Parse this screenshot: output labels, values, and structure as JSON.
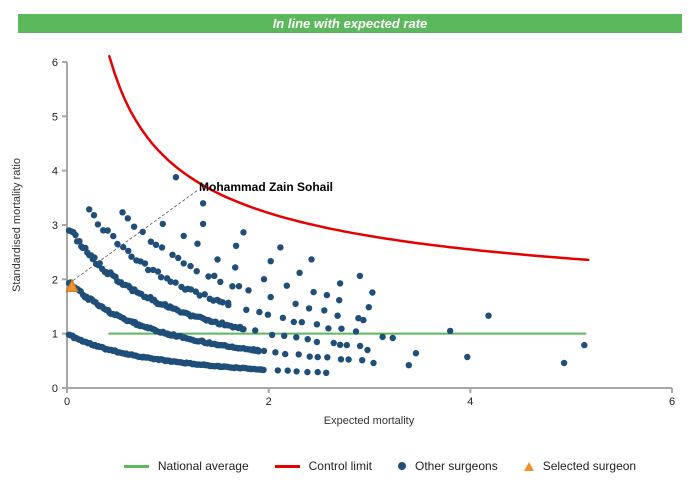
{
  "banner": {
    "text": "In line with expected rate",
    "background": "#5cb85c",
    "text_color": "#ffffff"
  },
  "chart_data": {
    "type": "scatter",
    "title": "In line with expected rate",
    "xlabel": "Expected mortality",
    "ylabel": "Standardised mortality ratio",
    "xlim": [
      0,
      6
    ],
    "ylim": [
      0,
      6
    ],
    "x_ticks": [
      0,
      2,
      4,
      6
    ],
    "y_ticks": [
      0,
      1,
      2,
      3,
      4,
      5,
      6
    ],
    "grid": false,
    "legend_position": "bottom",
    "colors": {
      "other_surgeons": "#1f4e79",
      "selected_surgeon": "#f0912d",
      "selected_surgeon_edge": "#c8761c",
      "national_average": "#5cb85c",
      "control_limit": "#e60000",
      "axis": "#a6a6a6",
      "leader_line": "#555555"
    },
    "national_average": {
      "value": 1,
      "x_start": 0.41,
      "x_end": 5.15
    },
    "control_limit": {
      "description": "y = 1 + 3/sqrt(x) + 0.2/x",
      "coef_sqrt": 3.0,
      "coef_inv": 0.2,
      "x_start": 0.42,
      "x_end": 5.17
    },
    "selected_surgeon": {
      "name": "Mohammad Zain Sohail",
      "x": 0.05,
      "y": 1.87
    },
    "band_formula": "y = observed_deaths / (1 + x)",
    "dot_radius": 3.2,
    "jitter": 0.02,
    "seed": 11,
    "bands": [
      {
        "observed_deaths": 1,
        "segments": [
          [
            0.02,
            1.95,
            0.01,
            0.022
          ],
          [
            1.95,
            2.65,
            0.055,
            0.15
          ]
        ]
      },
      {
        "observed_deaths": 2,
        "segments": [
          [
            0.02,
            1.9,
            0.011,
            0.024
          ],
          [
            1.9,
            2.95,
            0.05,
            0.14
          ]
        ]
      },
      {
        "observed_deaths": 3,
        "segments": [
          [
            0.02,
            1.75,
            0.013,
            0.03
          ],
          [
            1.75,
            2.95,
            0.05,
            0.17
          ]
        ]
      },
      {
        "observed_deaths": 4,
        "segments": [
          [
            0.22,
            1.6,
            0.025,
            0.06
          ],
          [
            1.6,
            2.92,
            0.07,
            0.2
          ]
        ]
      },
      {
        "observed_deaths": 5,
        "segments": [
          [
            0.55,
            1.8,
            0.05,
            0.12
          ],
          [
            1.8,
            2.95,
            0.1,
            0.25
          ]
        ]
      },
      {
        "observed_deaths": 6,
        "segments": [
          [
            0.95,
            3.05,
            0.12,
            0.3
          ]
        ]
      },
      {
        "observed_deaths": 7,
        "segments": [
          [
            1.35,
            3.05,
            0.2,
            0.45
          ]
        ]
      },
      {
        "observed_deaths": 8,
        "segments": [
          [
            1.75,
            2.95,
            0.3,
            0.6
          ]
        ]
      }
    ],
    "extra_points": [
      [
        1.08,
        3.88
      ],
      [
        1.35,
        3.4
      ],
      [
        2.94,
        1.25
      ],
      [
        2.98,
        0.7
      ],
      [
        3.04,
        0.46
      ],
      [
        3.13,
        0.94
      ],
      [
        3.23,
        0.92
      ],
      [
        3.39,
        0.42
      ],
      [
        3.46,
        0.64
      ],
      [
        3.8,
        1.05
      ],
      [
        3.97,
        0.57
      ],
      [
        4.18,
        1.33
      ],
      [
        4.93,
        0.46
      ],
      [
        5.13,
        0.79
      ]
    ],
    "legend": [
      {
        "label": "National average",
        "marker": "line",
        "color": "#5cb85c"
      },
      {
        "label": "Control limit",
        "marker": "line",
        "color": "#e60000"
      },
      {
        "label": "Other surgeons",
        "marker": "dot",
        "color": "#1f4e79"
      },
      {
        "label": "Selected surgeon",
        "marker": "triangle",
        "color": "#f0912d"
      }
    ]
  }
}
